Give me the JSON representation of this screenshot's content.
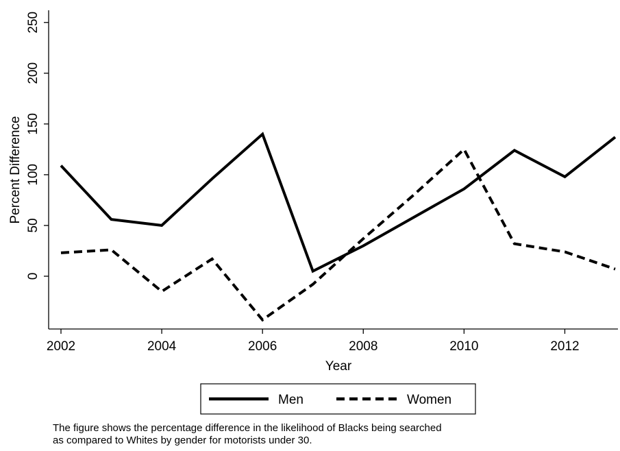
{
  "chart_data": {
    "type": "line",
    "xlabel": "Year",
    "ylabel": "Percent Difference",
    "x": [
      2002,
      2003,
      2004,
      2005,
      2006,
      2007,
      2008,
      2009,
      2010,
      2011,
      2012,
      2013
    ],
    "xticks": [
      "2002",
      "2004",
      "2006",
      "2008",
      "2010",
      "2012"
    ],
    "yticks": [
      "0",
      "50",
      "100",
      "150",
      "200",
      "250"
    ],
    "xlim": [
      2002,
      2013
    ],
    "ylim": [
      -52,
      262
    ],
    "grid": false,
    "legend_position": "bottom",
    "series": [
      {
        "name": "Men",
        "style": "solid",
        "color": "#000000",
        "values": [
          109,
          56,
          50,
          96,
          140,
          5,
          30,
          58,
          86,
          124,
          98,
          137
        ]
      },
      {
        "name": "Women",
        "style": "dashed",
        "color": "#000000",
        "values": [
          23,
          26,
          -15,
          17,
          -43,
          -8,
          37,
          80,
          125,
          32,
          24,
          7
        ]
      }
    ]
  },
  "caption": {
    "line1": "The figure shows the percentage difference in the likelihood of Blacks being searched",
    "line2": "as compared to Whites by gender for motorists under 30."
  }
}
